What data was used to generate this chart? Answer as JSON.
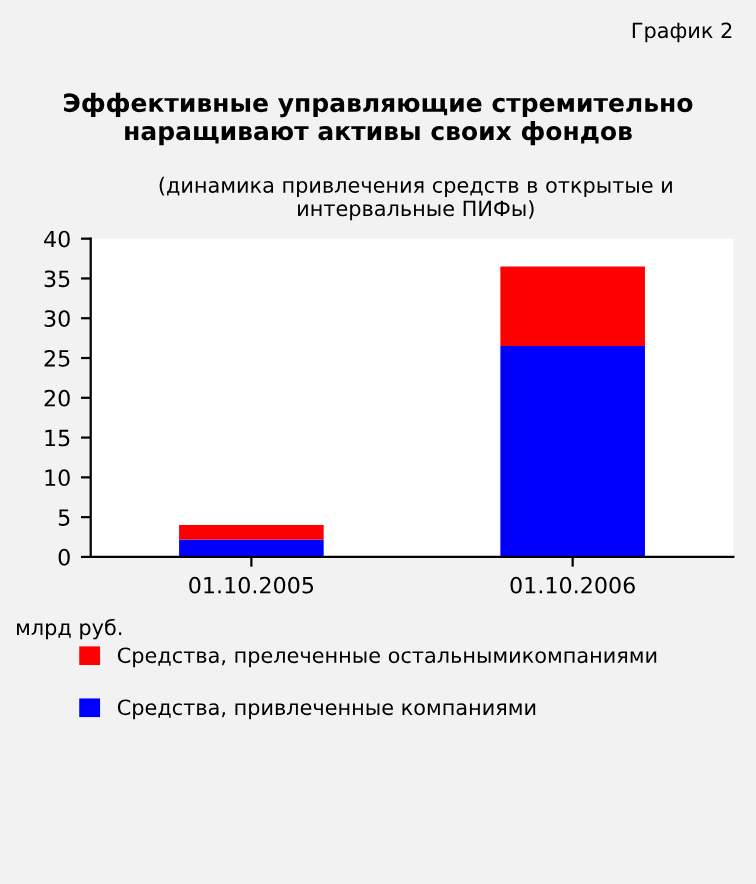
{
  "chart_data": {
    "type": "bar",
    "title": "Эффективные управляющие стремительно наращивают активы своих фондов",
    "subtitle": "(динамика привлечения средств в открытые и интервальные ПИФы)",
    "ylabel": "млрд руб.",
    "annotations": [
      "График 2"
    ],
    "categories": [
      "01.10.2005",
      "01.10.2006"
    ],
    "stacked": true,
    "series": [
      {
        "name": "Средства, привлеченные компаниями",
        "color": "#0000ff",
        "values": [
          2.2,
          26.5
        ]
      },
      {
        "name": "Средства, прелеченные остальнымикомпаниями",
        "color": "#ff0000",
        "values": [
          1.8,
          10
        ]
      }
    ],
    "ylim": [
      0,
      40
    ],
    "yticks": [
      0,
      5,
      10,
      15,
      20,
      25,
      30,
      35,
      40
    ],
    "grid": false,
    "legend": "bottom"
  }
}
